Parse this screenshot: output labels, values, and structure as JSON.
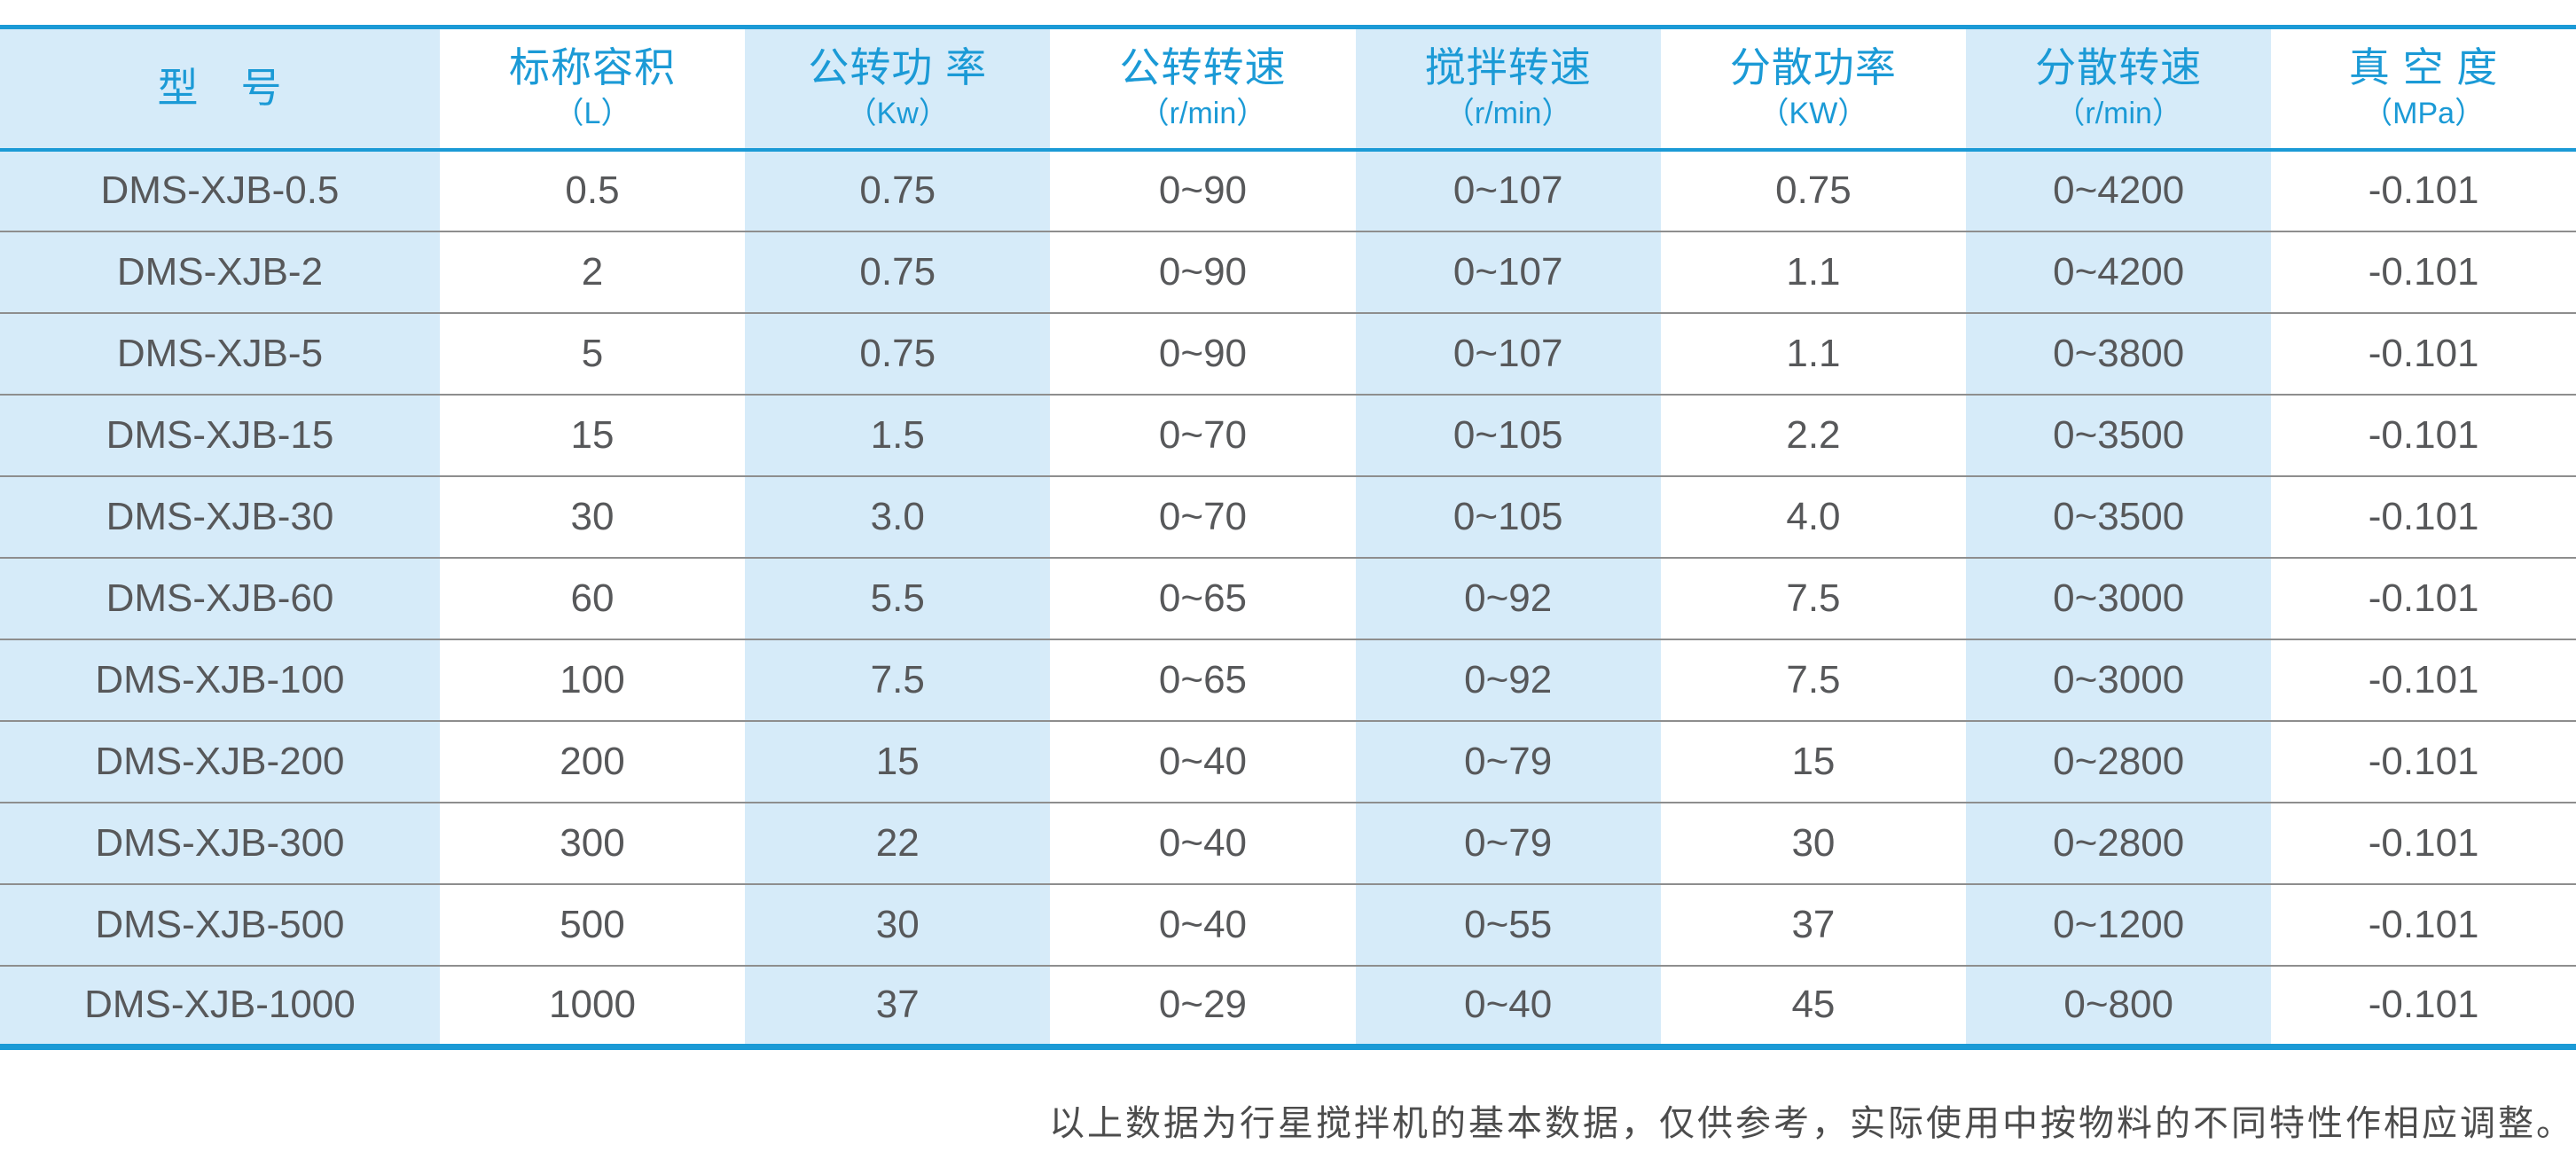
{
  "accent_color": "#1b9ad6",
  "stripe_color": "#d6ebf9",
  "table": {
    "columns": [
      {
        "title": "型　号",
        "unit": ""
      },
      {
        "title": "标称容积",
        "unit": "（L）"
      },
      {
        "title": "公转功 率",
        "unit": "（Kw）"
      },
      {
        "title": "公转转速",
        "unit": "（r/min）"
      },
      {
        "title": "搅拌转速",
        "unit": "（r/min）"
      },
      {
        "title": "分散功率",
        "unit": "（KW）"
      },
      {
        "title": "分散转速",
        "unit": "（r/min）"
      },
      {
        "title": "真 空 度",
        "unit": "（MPa）"
      }
    ],
    "rows": [
      [
        "DMS-XJB-0.5",
        "0.5",
        "0.75",
        "0~90",
        "0~107",
        "0.75",
        "0~4200",
        "-0.101"
      ],
      [
        "DMS-XJB-2",
        "2",
        "0.75",
        "0~90",
        "0~107",
        "1.1",
        "0~4200",
        "-0.101"
      ],
      [
        "DMS-XJB-5",
        "5",
        "0.75",
        "0~90",
        "0~107",
        "1.1",
        "0~3800",
        "-0.101"
      ],
      [
        "DMS-XJB-15",
        "15",
        "1.5",
        "0~70",
        "0~105",
        "2.2",
        "0~3500",
        "-0.101"
      ],
      [
        "DMS-XJB-30",
        "30",
        "3.0",
        "0~70",
        "0~105",
        "4.0",
        "0~3500",
        "-0.101"
      ],
      [
        "DMS-XJB-60",
        "60",
        "5.5",
        "0~65",
        "0~92",
        "7.5",
        "0~3000",
        "-0.101"
      ],
      [
        "DMS-XJB-100",
        "100",
        "7.5",
        "0~65",
        "0~92",
        "7.5",
        "0~3000",
        "-0.101"
      ],
      [
        "DMS-XJB-200",
        "200",
        "15",
        "0~40",
        "0~79",
        "15",
        "0~2800",
        "-0.101"
      ],
      [
        "DMS-XJB-300",
        "300",
        "22",
        "0~40",
        "0~79",
        "30",
        "0~2800",
        "-0.101"
      ],
      [
        "DMS-XJB-500",
        "500",
        "30",
        "0~40",
        "0~55",
        "37",
        "0~1200",
        "-0.101"
      ],
      [
        "DMS-XJB-1000",
        "1000",
        "37",
        "0~29",
        "0~40",
        "45",
        "0~800",
        "-0.101"
      ]
    ]
  },
  "footer_note": "以上数据为行星搅拌机的基本数据，仅供参考，实际使用中按物料的不同特性作相应调整。",
  "chart_data": {
    "type": "table",
    "title": "",
    "columns": [
      "型　号",
      "标称容积（L）",
      "公转功 率（Kw）",
      "公转转速（r/min）",
      "搅拌转速（r/min）",
      "分散功率（KW）",
      "分散转速（r/min）",
      "真 空 度（MPa）"
    ],
    "rows": [
      [
        "DMS-XJB-0.5",
        "0.5",
        "0.75",
        "0~90",
        "0~107",
        "0.75",
        "0~4200",
        "-0.101"
      ],
      [
        "DMS-XJB-2",
        "2",
        "0.75",
        "0~90",
        "0~107",
        "1.1",
        "0~4200",
        "-0.101"
      ],
      [
        "DMS-XJB-5",
        "5",
        "0.75",
        "0~90",
        "0~107",
        "1.1",
        "0~3800",
        "-0.101"
      ],
      [
        "DMS-XJB-15",
        "15",
        "1.5",
        "0~70",
        "0~105",
        "2.2",
        "0~3500",
        "-0.101"
      ],
      [
        "DMS-XJB-30",
        "30",
        "3.0",
        "0~70",
        "0~105",
        "4.0",
        "0~3500",
        "-0.101"
      ],
      [
        "DMS-XJB-60",
        "60",
        "5.5",
        "0~65",
        "0~92",
        "7.5",
        "0~3000",
        "-0.101"
      ],
      [
        "DMS-XJB-100",
        "100",
        "7.5",
        "0~65",
        "0~92",
        "7.5",
        "0~3000",
        "-0.101"
      ],
      [
        "DMS-XJB-200",
        "200",
        "15",
        "0~40",
        "0~79",
        "15",
        "0~2800",
        "-0.101"
      ],
      [
        "DMS-XJB-300",
        "300",
        "22",
        "0~40",
        "0~79",
        "30",
        "0~2800",
        "-0.101"
      ],
      [
        "DMS-XJB-500",
        "500",
        "30",
        "0~40",
        "0~55",
        "37",
        "0~1200",
        "-0.101"
      ],
      [
        "DMS-XJB-1000",
        "1000",
        "37",
        "0~29",
        "0~40",
        "45",
        "0~800",
        "-0.101"
      ]
    ],
    "annotations": [
      "以上数据为行星搅拌机的基本数据，仅供参考，实际使用中按物料的不同特性作相应调整。"
    ],
    "layout": {
      "striped_columns": [
        0,
        2,
        4,
        6
      ],
      "grid": "horizontal-lines",
      "legend": "none"
    }
  }
}
